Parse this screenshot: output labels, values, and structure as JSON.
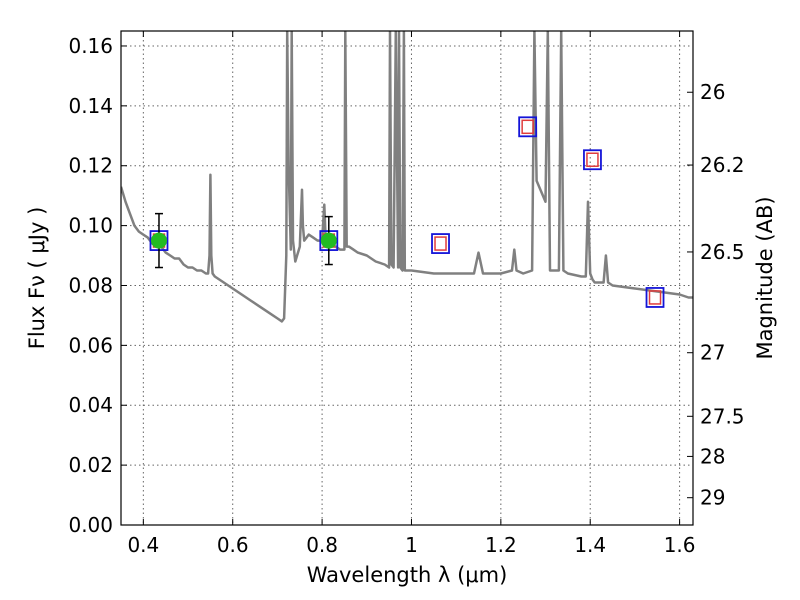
{
  "chart_data": {
    "type": "line",
    "title": "",
    "xlabel": "Wavelength  λ (μm)",
    "ylabel_left": "Flux  Fν  ( μJy )",
    "ylabel_right": "Magnitude (AB)",
    "xlim": [
      0.35,
      1.63
    ],
    "ylim": [
      0.0,
      0.165
    ],
    "grid": true,
    "x_ticks": [
      0.4,
      0.6,
      0.8,
      1.0,
      1.2,
      1.4,
      1.6
    ],
    "x_tick_labels": [
      "0.4",
      "0.6",
      "0.8",
      "1",
      "1.2",
      "1.4",
      "1.6"
    ],
    "y_ticks": [
      0.0,
      0.02,
      0.04,
      0.06,
      0.08,
      0.1,
      0.12,
      0.14,
      0.16
    ],
    "y_tick_labels": [
      "0.00",
      "0.02",
      "0.04",
      "0.06",
      "0.08",
      "0.10",
      "0.12",
      "0.14",
      "0.16"
    ],
    "right_ticks": [
      {
        "mag": 26,
        "label": "26"
      },
      {
        "mag": 26.2,
        "label": "26.2"
      },
      {
        "mag": 26.5,
        "label": "26.5"
      },
      {
        "mag": 27,
        "label": "27"
      },
      {
        "mag": 27.5,
        "label": "27.5"
      },
      {
        "mag": 28,
        "label": "28"
      },
      {
        "mag": 29,
        "label": "29"
      }
    ],
    "colors": {
      "model": "#808080",
      "observed_fill": "#22bb22",
      "box": "#1414d8",
      "model_box": "#e03c3c",
      "errorbar": "#000000"
    },
    "series": [
      {
        "name": "model_sed",
        "style": "line",
        "x": [
          0.35,
          0.36,
          0.37,
          0.38,
          0.39,
          0.4,
          0.41,
          0.42,
          0.43,
          0.44,
          0.45,
          0.46,
          0.47,
          0.48,
          0.49,
          0.5,
          0.51,
          0.52,
          0.53,
          0.54,
          0.545,
          0.548,
          0.55,
          0.552,
          0.555,
          0.56,
          0.58,
          0.6,
          0.62,
          0.64,
          0.66,
          0.68,
          0.7,
          0.71,
          0.715,
          0.72,
          0.722,
          0.725,
          0.73,
          0.732,
          0.735,
          0.74,
          0.75,
          0.755,
          0.757,
          0.76,
          0.765,
          0.77,
          0.78,
          0.79,
          0.8,
          0.805,
          0.808,
          0.81,
          0.815,
          0.82,
          0.83,
          0.84,
          0.85,
          0.852,
          0.855,
          0.86,
          0.87,
          0.88,
          0.9,
          0.92,
          0.94,
          0.95,
          0.952,
          0.955,
          0.96,
          0.965,
          0.97,
          0.972,
          0.975,
          0.98,
          0.983,
          0.985,
          0.99,
          1.0,
          1.05,
          1.1,
          1.14,
          1.15,
          1.16,
          1.2,
          1.225,
          1.23,
          1.235,
          1.25,
          1.27,
          1.275,
          1.28,
          1.3,
          1.305,
          1.31,
          1.33,
          1.335,
          1.34,
          1.35,
          1.38,
          1.39,
          1.395,
          1.4,
          1.405,
          1.41,
          1.43,
          1.435,
          1.44,
          1.45,
          1.5,
          1.55,
          1.6,
          1.62,
          1.63
        ],
        "y": [
          0.113,
          0.108,
          0.104,
          0.1,
          0.098,
          0.097,
          0.096,
          0.094,
          0.093,
          0.093,
          0.091,
          0.09,
          0.089,
          0.089,
          0.087,
          0.086,
          0.086,
          0.085,
          0.085,
          0.084,
          0.084,
          0.09,
          0.117,
          0.09,
          0.084,
          0.083,
          0.081,
          0.079,
          0.077,
          0.075,
          0.073,
          0.071,
          0.069,
          0.068,
          0.069,
          0.09,
          0.165,
          0.12,
          0.092,
          0.165,
          0.095,
          0.088,
          0.093,
          0.112,
          0.1,
          0.095,
          0.096,
          0.097,
          0.096,
          0.095,
          0.095,
          0.107,
          0.095,
          0.095,
          0.094,
          0.094,
          0.093,
          0.092,
          0.092,
          0.165,
          0.093,
          0.093,
          0.092,
          0.091,
          0.09,
          0.088,
          0.087,
          0.086,
          0.165,
          0.087,
          0.086,
          0.165,
          0.086,
          0.165,
          0.086,
          0.085,
          0.165,
          0.085,
          0.085,
          0.085,
          0.084,
          0.084,
          0.084,
          0.091,
          0.084,
          0.084,
          0.085,
          0.092,
          0.085,
          0.084,
          0.085,
          0.165,
          0.115,
          0.108,
          0.165,
          0.085,
          0.085,
          0.165,
          0.085,
          0.084,
          0.083,
          0.083,
          0.108,
          0.084,
          0.082,
          0.081,
          0.081,
          0.09,
          0.081,
          0.08,
          0.079,
          0.078,
          0.077,
          0.076,
          0.076
        ]
      },
      {
        "name": "observed_photometry",
        "style": "points",
        "x": [
          0.435,
          0.815
        ],
        "y": [
          0.095,
          0.095
        ],
        "yerr": [
          0.009,
          0.008
        ]
      },
      {
        "name": "model_photometry",
        "style": "squares",
        "x": [
          0.435,
          0.815,
          1.065,
          1.26,
          1.405,
          1.545
        ],
        "y": [
          0.095,
          0.095,
          0.094,
          0.133,
          0.122,
          0.076
        ]
      }
    ]
  }
}
